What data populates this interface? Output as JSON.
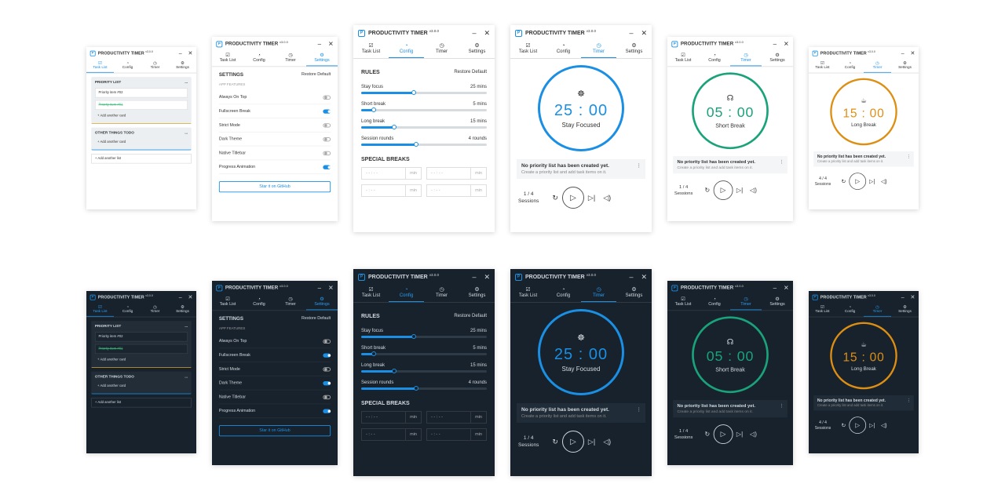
{
  "app": {
    "title": "PRODUCTIVITY TIMER",
    "version": "v3.0.0",
    "logo": "P",
    "controls": [
      "–",
      "✕"
    ],
    "tabs": [
      "Task List",
      "Config",
      "Timer",
      "Settings"
    ]
  },
  "tasklist": {
    "lists": [
      {
        "title": "PRIORITY LIST",
        "menu": "...",
        "cards": [
          {
            "text": "Priority item #02",
            "done": false
          },
          {
            "text": "Priority item #01",
            "done": true
          }
        ],
        "add_card": "+ Add another card",
        "accent": "#d9a52b"
      },
      {
        "title": "OTHER THINGS TODO",
        "menu": "...",
        "cards": [],
        "add_card": "+ Add another card",
        "accent": "#1a8fe3"
      }
    ],
    "add_list": "+ Add another list"
  },
  "settings": {
    "title": "SETTINGS",
    "restore": "Restore Default",
    "section": "APP FEATURES",
    "options": [
      "Always On Top",
      "Fullscreen Break",
      "Strict Mode",
      "Dark Theme",
      "Native Titlebar",
      "Progress Animation"
    ],
    "github": "Star it on GitHub"
  },
  "config": {
    "title": "RULES",
    "restore": "Restore Default",
    "rules": [
      {
        "label": "Stay focus",
        "value": "25 mins",
        "level": 0.42
      },
      {
        "label": "Short break",
        "value": "5 mins",
        "level": 0.1
      },
      {
        "label": "Long break",
        "value": "15 mins",
        "level": 0.26
      },
      {
        "label": "Session rounds",
        "value": "4 rounds",
        "level": 0.44
      }
    ],
    "special_title": "SPECIAL BREAKS",
    "special_time": "- - : - -",
    "special_time2": "- : - -",
    "special_unit": "min"
  },
  "timers": [
    {
      "time": "25 : 00",
      "label": "Stay Focused",
      "color": "#1a8fe3",
      "icon": "☸"
    },
    {
      "time": "05 : 00",
      "label": "Short Break",
      "color": "#1aa37a",
      "icon": "☊"
    },
    {
      "time": "15 : 00",
      "label": "Long Break",
      "color": "#dd8f14",
      "icon": "☕"
    }
  ],
  "timer_notice": {
    "title": "No priority list has been created yet.",
    "subtitle": "Create a priority list and add task items on it.",
    "menu": "⋮"
  },
  "sessions": [
    {
      "count": "1 / 4",
      "label": "Sessions"
    },
    {
      "count": "1 / 4",
      "label": "Sessions"
    },
    {
      "count": "4 / 4",
      "label": "Sessions"
    }
  ],
  "themes": {
    "light_toggles": [
      false,
      true,
      false,
      false,
      false,
      true
    ],
    "dark_toggles": [
      false,
      true,
      false,
      true,
      false,
      true
    ]
  }
}
